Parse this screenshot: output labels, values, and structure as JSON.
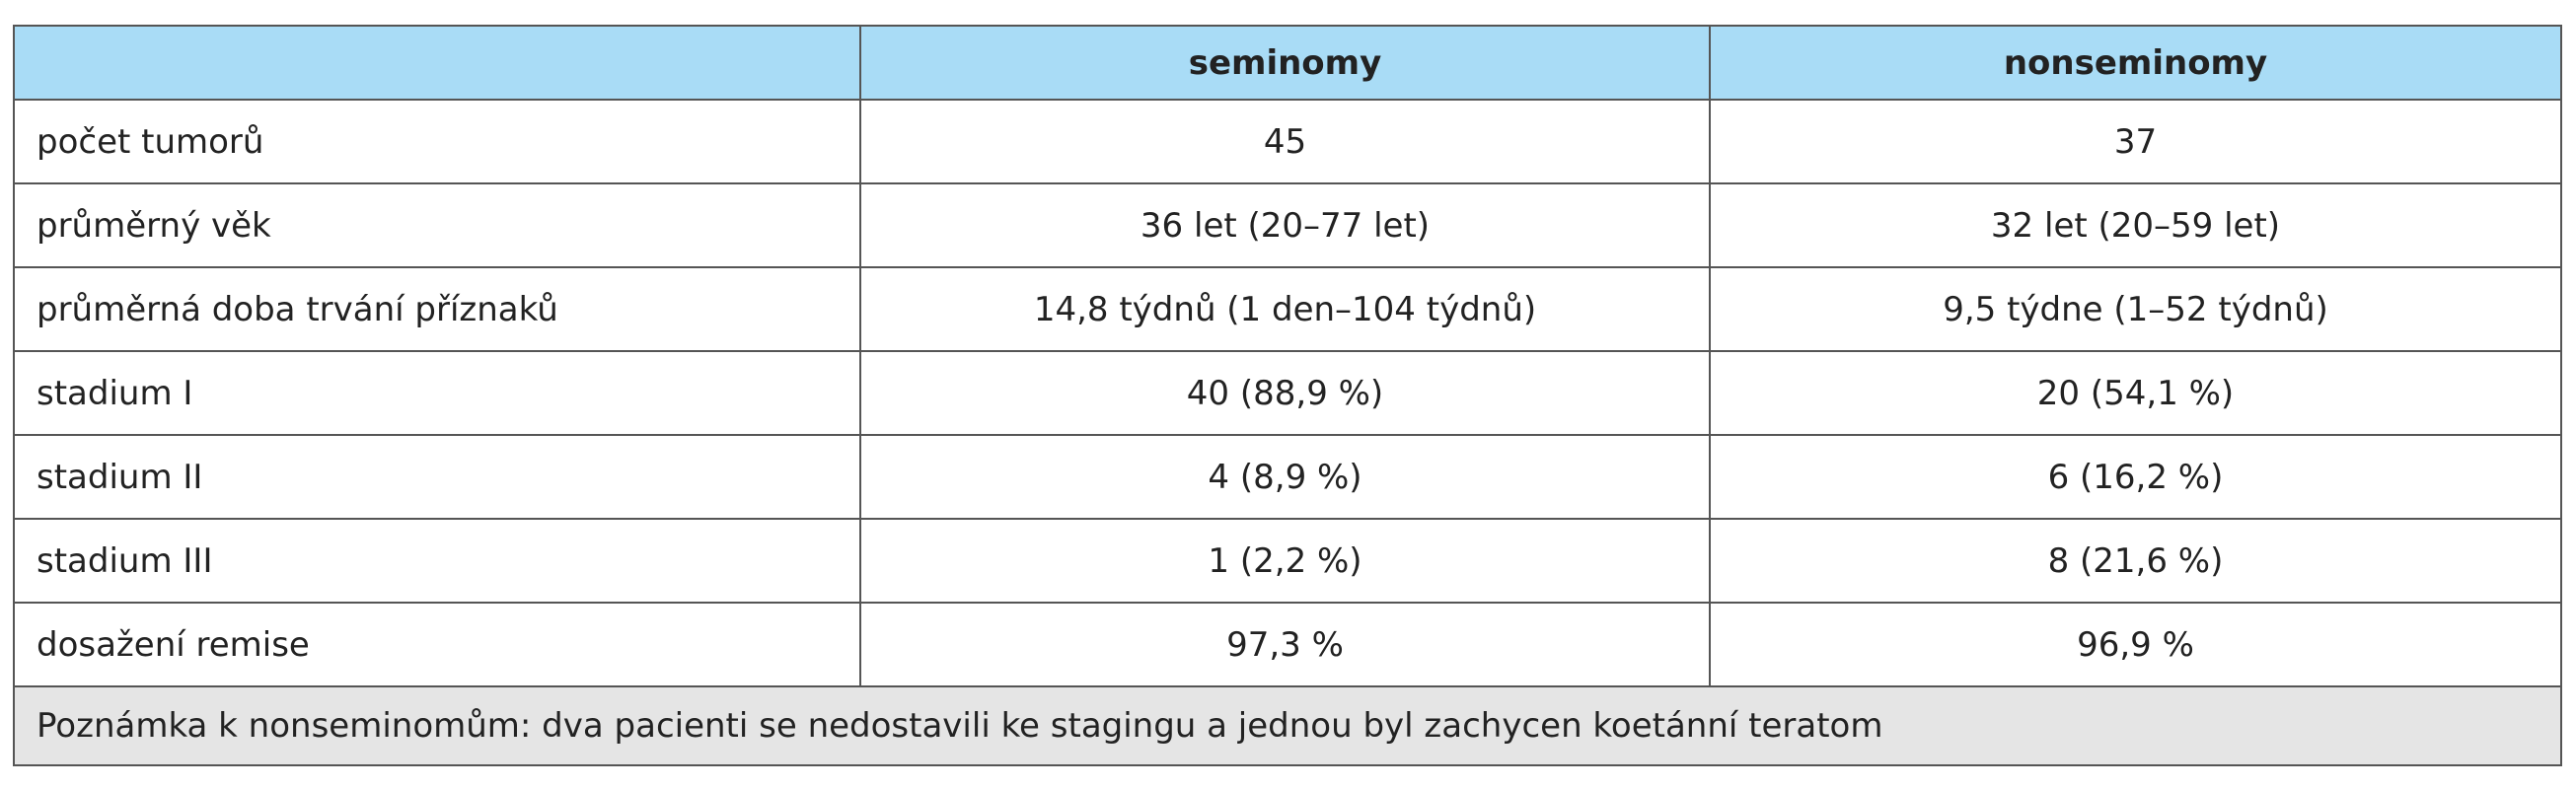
{
  "table": {
    "columns": [
      "seminomy",
      "nonseminomy"
    ],
    "rows": [
      [
        "počet tumorů",
        "45",
        "37"
      ],
      [
        "průměrný věk",
        "36 let (20–77 let)",
        "32 let (20–59 let)"
      ],
      [
        "průměrná doba trvání příznaků",
        "14,8 týdnů (1 den–104 týdnů)",
        "9,5 týdne (1–52 týdnů)"
      ],
      [
        "stadium I",
        "40 (88,9 %)",
        "20 (54,1 %)"
      ],
      [
        "stadium II",
        "4 (8,9 %)",
        "6 (16,2 %)"
      ],
      [
        "stadium III",
        "1 (2,2 %)",
        "8 (21,6 %)"
      ],
      [
        "dosažení remise",
        "97,3 %",
        "96,9 %"
      ]
    ],
    "note": "Poznámka k nonseminomům: dva pacienti se nedostavili ke stagingu a jednou byl zachycen koetánní teratom"
  }
}
